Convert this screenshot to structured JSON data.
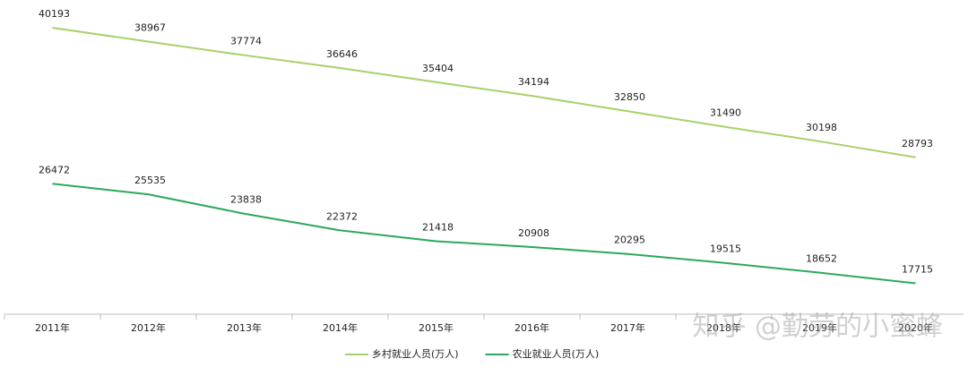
{
  "chart_data": {
    "type": "line",
    "categories": [
      "2011年",
      "2012年",
      "2013年",
      "2014年",
      "2015年",
      "2016年",
      "2017年",
      "2018年",
      "2019年",
      "2020年"
    ],
    "series": [
      {
        "name": "乡村就业人员(万人)",
        "color": "#a6d16a",
        "values": [
          40193,
          38967,
          37774,
          36646,
          35404,
          34194,
          32850,
          31490,
          30198,
          28793
        ]
      },
      {
        "name": "农业就业人员(万人)",
        "color": "#2ca85a",
        "values": [
          26472,
          25535,
          23838,
          22372,
          21418,
          20908,
          20295,
          19515,
          18652,
          17715
        ]
      }
    ],
    "ylim": [
      15000,
      42000
    ],
    "legend": "bottom",
    "watermark": "知乎 @勤劳的小蜜蜂"
  }
}
